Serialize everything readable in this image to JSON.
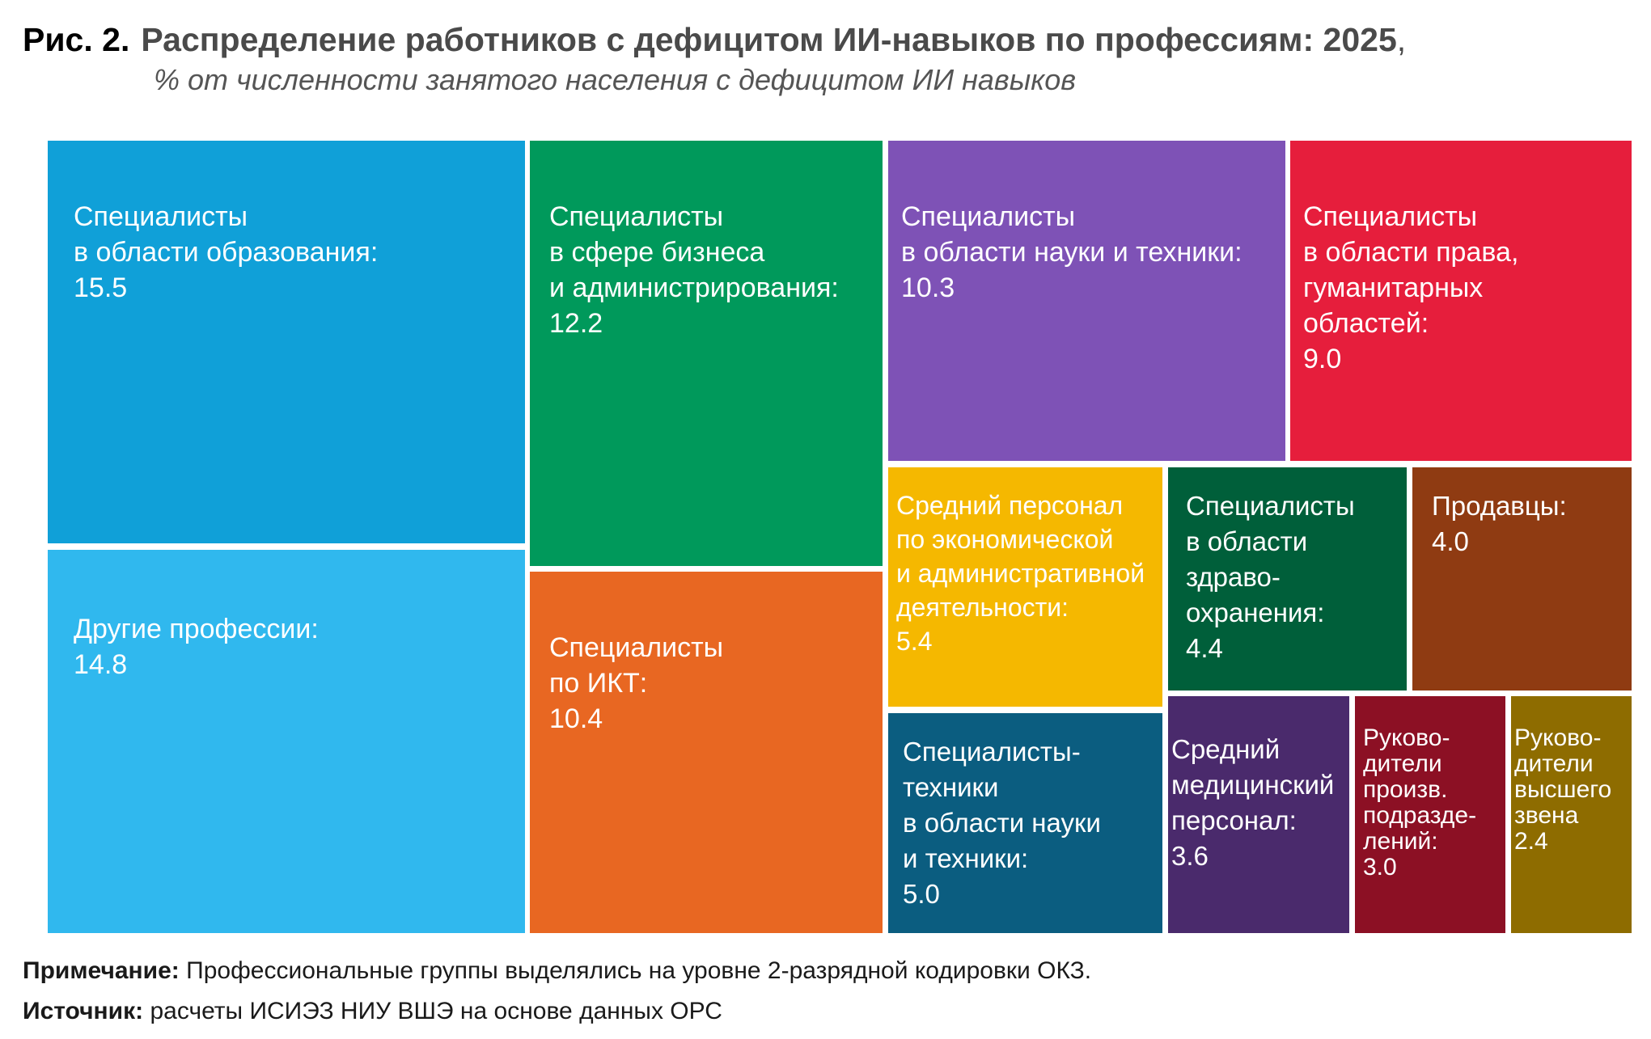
{
  "header": {
    "figure_label": "Рис. 2.",
    "title": "Распределение работников с дефицитом ИИ-навыков по профессиям: 2025",
    "title_comma": ",",
    "subtitle": "% от численности занятого населения с дефицитом ИИ навыков"
  },
  "chart_data": {
    "type": "treemap",
    "items": [
      {
        "label": "Специалисты\nв области образования:",
        "value": 15.5,
        "value_text": "15.5",
        "color": "#10A0D8"
      },
      {
        "label": "Другие профессии:",
        "value": 14.8,
        "value_text": "14.8",
        "color": "#30B8EE"
      },
      {
        "label": "Специалисты\nв сфере бизнеса\nи администрирования:",
        "value": 12.2,
        "value_text": "12.2",
        "color": "#00995B"
      },
      {
        "label": "Специалисты\nпо ИКТ:",
        "value": 10.4,
        "value_text": "10.4",
        "color": "#E86722"
      },
      {
        "label": "Специалисты\nв области науки и техники:",
        "value": 10.3,
        "value_text": "10.3",
        "color": "#7E52B6"
      },
      {
        "label": "Специалисты\nв области права,\nгуманитарных\nобластей:",
        "value": 9.0,
        "value_text": "9.0",
        "color": "#E61E3C"
      },
      {
        "label": "Средний персонал\nпо экономической\nи административной\nдеятельности:",
        "value": 5.4,
        "value_text": "5.4",
        "color": "#F5B800"
      },
      {
        "label": "Специалисты-\nтехники\nв области науки\nи техники:",
        "value": 5.0,
        "value_text": "5.0",
        "color": "#0B5D80"
      },
      {
        "label": "Специалисты\nв области\nздраво-\nохранения:",
        "value": 4.4,
        "value_text": "4.4",
        "color": "#005F3A"
      },
      {
        "label": "Продавцы:",
        "value": 4.0,
        "value_text": "4.0",
        "color": "#8F3B12"
      },
      {
        "label": "Средний\nмедицинский\nперсонал:",
        "value": 3.6,
        "value_text": "3.6",
        "color": "#4A2A6C"
      },
      {
        "label": "Руково-\nдители\nпроизв.\nподразде-\nлений:",
        "value": 3.0,
        "value_text": "3.0",
        "color": "#8C1024"
      },
      {
        "label": "Руково-\nдители\nвысшего\nзвена",
        "value": 2.4,
        "value_text": "2.4",
        "color": "#8E6C00"
      }
    ]
  },
  "footer": {
    "note_label": "Примечание:",
    "note_text": "Профессиональные группы выделялись на уровне 2-разрядной кодировки ОКЗ.",
    "source_label": "Источник:",
    "source_text": "расчеты ИСИЭЗ НИУ ВШЭ на основе данных ОРС"
  }
}
